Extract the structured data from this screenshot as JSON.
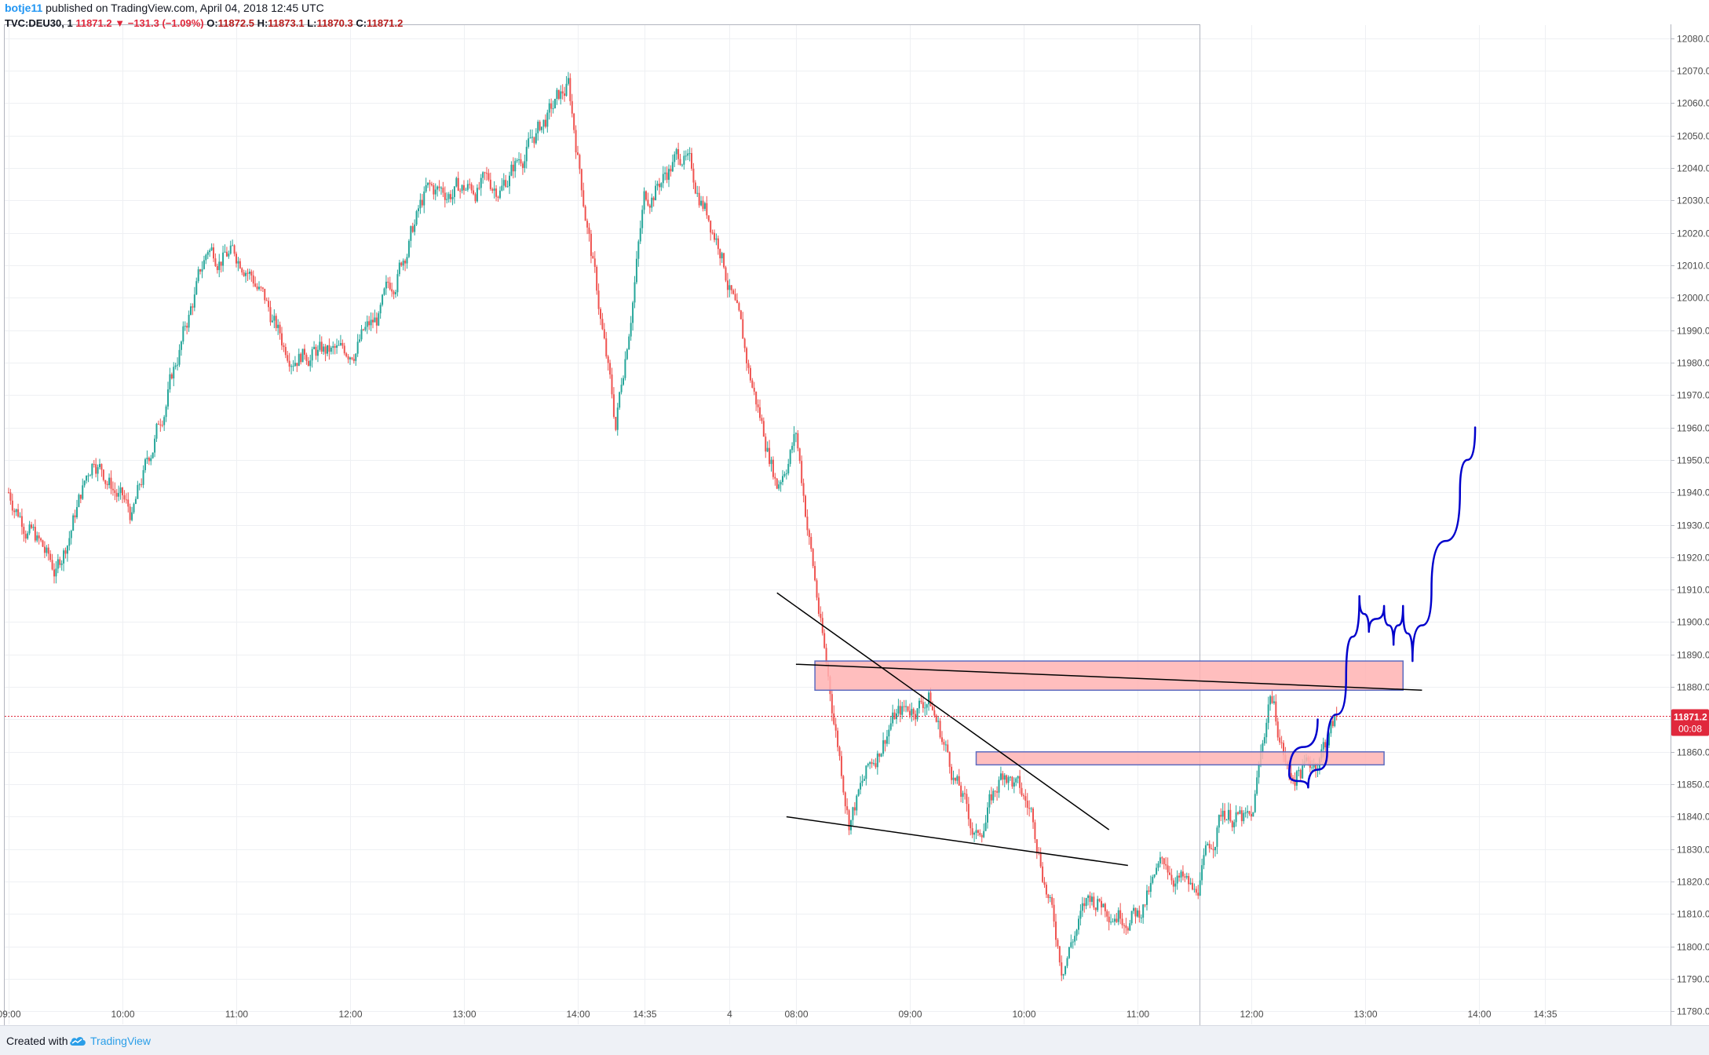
{
  "header": {
    "author": "botje11",
    "published_text": "published on TradingView.com, April 04, 2018 12:45 UTC",
    "symbol": "TVC:DEU30, 1",
    "last": "11871.2",
    "change": "−131.3 (−1.09%)",
    "open_label": "O:",
    "open": "11872.5",
    "high_label": "H:",
    "high": "11873.1",
    "low_label": "L:",
    "low": "11870.3",
    "close_label": "C:",
    "close": "11871.2"
  },
  "footer": {
    "created_text": "Created with",
    "brand": "TradingView"
  },
  "colors": {
    "up": "#26a69a",
    "down": "#ef5350",
    "zone_fill": "#ffb3b3",
    "zone_border": "#5c6bc0",
    "projection": "#0000cc",
    "price_tag": "#e0283c"
  },
  "chart_data": {
    "type": "candlestick",
    "timeframe_minutes": 1,
    "y_range": [
      11776,
      12084
    ],
    "y_ticks": [
      11780,
      11790,
      11800,
      11810,
      11820,
      11830,
      11840,
      11850,
      11860,
      11870,
      11880,
      11890,
      11900,
      11910,
      11920,
      11930,
      11940,
      11950,
      11960,
      11970,
      11980,
      11990,
      12000,
      12010,
      12020,
      12030,
      12040,
      12050,
      12060,
      12070,
      12080
    ],
    "x_ticks": [
      "09:00",
      "10:00",
      "11:00",
      "12:00",
      "13:00",
      "14:00",
      "14:35",
      "4",
      "08:00",
      "09:00",
      "10:00",
      "11:00",
      "12:00",
      "13:00",
      "14:00",
      "14:35"
    ],
    "current_price": "11871.2",
    "countdown": "00:08",
    "price_path": [
      [
        "Apr 03 09:00",
        11940
      ],
      [
        "Apr 03 09:25",
        11915
      ],
      [
        "Apr 03 09:45",
        11952
      ],
      [
        "Apr 03 10:05",
        11932
      ],
      [
        "Apr 03 10:45",
        12015
      ],
      [
        "Apr 03 11:05",
        12012
      ],
      [
        "Apr 03 11:25",
        11985
      ],
      [
        "Apr 03 11:55",
        11982
      ],
      [
        "Apr 03 12:15",
        11993
      ],
      [
        "Apr 03 12:40",
        12032
      ],
      [
        "Apr 03 13:20",
        12035
      ],
      [
        "Apr 03 13:55",
        12065
      ],
      [
        "Apr 03 14:20",
        11960
      ],
      [
        "Apr 03 14:35",
        12030
      ],
      [
        "Apr 03 14:55",
        12045
      ],
      [
        "Apr 03 15:15",
        12017
      ],
      [
        "Apr 04 07:35",
        11977
      ],
      [
        "Apr 04 07:50",
        11943
      ],
      [
        "Apr 04 08:00",
        11958
      ],
      [
        "Apr 04 08:15",
        11890
      ],
      [
        "Apr 04 08:28",
        11840
      ],
      [
        "Apr 04 08:50",
        11870
      ],
      [
        "Apr 04 09:10",
        11877
      ],
      [
        "Apr 04 09:25",
        11850
      ],
      [
        "Apr 04 09:35",
        11833
      ],
      [
        "Apr 04 09:50",
        11855
      ],
      [
        "Apr 04 10:05",
        11840
      ],
      [
        "Apr 04 10:20",
        11795
      ],
      [
        "Apr 04 10:35",
        11815
      ],
      [
        "Apr 04 11:00",
        11810
      ],
      [
        "Apr 04 11:15",
        11826
      ],
      [
        "Apr 04 11:30",
        11815
      ],
      [
        "Apr 04 11:45",
        11843
      ],
      [
        "Apr 04 12:00",
        11837
      ],
      [
        "Apr 04 12:10",
        11879
      ],
      [
        "Apr 04 12:20",
        11852
      ],
      [
        "Apr 04 12:35",
        11858
      ],
      [
        "Apr 04 12:45",
        11871
      ]
    ],
    "annotations": {
      "zones": [
        {
          "from": "Apr 04 08:10",
          "to": "Apr 04 13:20",
          "low": 11879,
          "high": 11888
        },
        {
          "from": "Apr 04 09:35",
          "to": "Apr 04 13:10",
          "low": 11856,
          "high": 11860
        }
      ],
      "trendlines": [
        {
          "from": [
            "Apr 04 07:50",
            11909
          ],
          "to": [
            "Apr 04 10:45",
            11836
          ]
        },
        {
          "from": [
            "Apr 04 07:55",
            11840
          ],
          "to": [
            "Apr 04 10:55",
            11825
          ]
        },
        {
          "from": [
            "Apr 04 08:00",
            11887
          ],
          "to": [
            "Apr 04 13:30",
            11879
          ]
        }
      ],
      "projection": [
        [
          "Apr 04 12:35",
          11870
        ],
        [
          "Apr 04 12:20",
          11853
        ],
        [
          "Apr 04 12:30",
          11849
        ],
        [
          "Apr 04 12:40",
          11860
        ],
        [
          "Apr 04 12:50",
          11883
        ],
        [
          "Apr 04 12:57",
          11908
        ],
        [
          "Apr 04 13:02",
          11897
        ],
        [
          "Apr 04 13:10",
          11905
        ],
        [
          "Apr 04 13:15",
          11893
        ],
        [
          "Apr 04 13:20",
          11905
        ],
        [
          "Apr 04 13:25",
          11888
        ],
        [
          "Apr 04 13:35",
          11910
        ],
        [
          "Apr 04 13:50",
          11940
        ],
        [
          "Apr 04 13:58",
          11960
        ]
      ]
    }
  }
}
